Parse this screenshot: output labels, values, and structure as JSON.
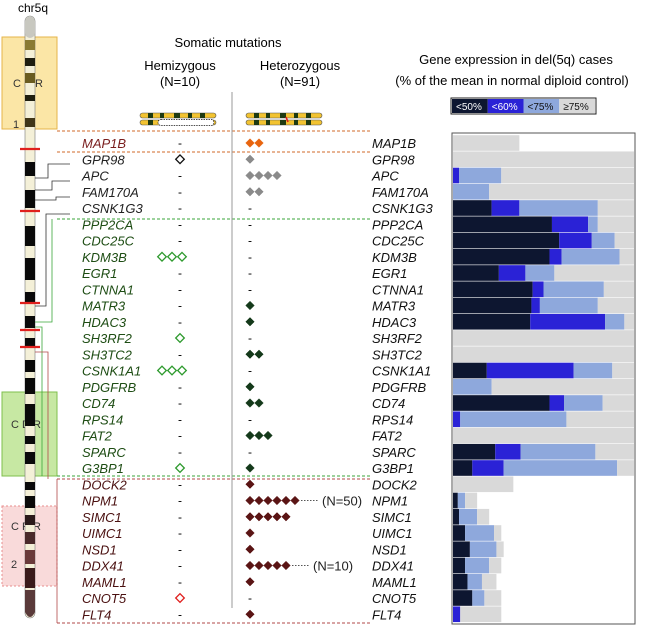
{
  "chromosome": {
    "label": "chr5q"
  },
  "regions": [
    {
      "id": "crr1",
      "lines": [
        "C R R",
        "1"
      ],
      "color": "#fbe6a6"
    },
    {
      "id": "cdr",
      "lines": [
        "C D R"
      ],
      "color": "#c7e8a3"
    },
    {
      "id": "crr2",
      "lines": [
        "C R R",
        "2"
      ],
      "color": "#f9dada"
    }
  ],
  "mutations": {
    "title": "Somatic mutations",
    "hemi_label": "Hemizygous",
    "hemi_n": "(N=10)",
    "hetero_label": "Heterozygous",
    "hetero_n": "(N=91)"
  },
  "expression": {
    "title_line1": "Gene expression in del(5q) cases",
    "title_line2": "(% of the mean in normal diploid control)",
    "legend": [
      {
        "label": "<50%",
        "color": "#0d1630"
      },
      {
        "label": "<60%",
        "color": "#2a22d6"
      },
      {
        "label": "<75%",
        "color": "#8ea8dc"
      },
      {
        "label": "≥75%",
        "color": "#d9d9d9"
      }
    ]
  },
  "colors": {
    "crr1_gene": "#7a1e1e",
    "gray_gene": "#222222",
    "cdr_gene": "#1e4d14",
    "crr2_gene": "#4a1010",
    "diamond_orange": "#e8640e",
    "diamond_gray": "#8a8a8a",
    "diamond_green_dark": "#14391a",
    "diamond_brown": "#5a1414",
    "hollow_green": "#2e9a2e",
    "hollow_red": "#e0201e",
    "hollow_black": "#111111"
  },
  "genes": [
    {
      "name": "MAP1B",
      "group": "crr1",
      "hemi": {
        "n": 0,
        "style": "dash"
      },
      "hetero": {
        "n": 2,
        "style": "orange"
      },
      "exp": [
        0,
        0,
        0,
        55
      ]
    },
    {
      "name": "GPR98",
      "group": "gray",
      "hemi": {
        "n": 1,
        "style": "black"
      },
      "hetero": {
        "n": 1,
        "style": "gray"
      },
      "exp": [
        0,
        0,
        0,
        150
      ]
    },
    {
      "name": "APC",
      "group": "gray",
      "hemi": {
        "n": 0,
        "style": "dash"
      },
      "hetero": {
        "n": 4,
        "style": "gray"
      },
      "exp": [
        0,
        5,
        40,
        150
      ]
    },
    {
      "name": "FAM170A",
      "group": "gray",
      "hemi": {
        "n": 0,
        "style": "dash"
      },
      "hetero": {
        "n": 2,
        "style": "gray"
      },
      "exp": [
        0,
        0,
        30,
        150
      ]
    },
    {
      "name": "CSNK1G3",
      "group": "gray",
      "hemi": {
        "n": 0,
        "style": "dash"
      },
      "hetero": {
        "n": 0,
        "style": "dash"
      },
      "exp": [
        32,
        55,
        120,
        150
      ]
    },
    {
      "name": "PPP2CA",
      "group": "cdr",
      "hemi": {
        "n": 0,
        "style": "dash"
      },
      "hetero": {
        "n": 0,
        "style": "dash"
      },
      "exp": [
        82,
        112,
        120,
        150
      ]
    },
    {
      "name": "CDC25C",
      "group": "cdr",
      "hemi": {
        "n": 0,
        "style": "dash"
      },
      "hetero": {
        "n": 0,
        "style": "dash"
      },
      "exp": [
        88,
        115,
        134,
        150
      ]
    },
    {
      "name": "KDM3B",
      "group": "cdr",
      "hemi": {
        "n": 3,
        "style": "green"
      },
      "hetero": {
        "n": 0,
        "style": "dash"
      },
      "exp": [
        80,
        90,
        138,
        150
      ]
    },
    {
      "name": "EGR1",
      "group": "cdr",
      "hemi": {
        "n": 0,
        "style": "dash"
      },
      "hetero": {
        "n": 0,
        "style": "dash"
      },
      "exp": [
        38,
        60,
        84,
        150
      ]
    },
    {
      "name": "CTNNA1",
      "group": "cdr",
      "hemi": {
        "n": 0,
        "style": "dash"
      },
      "hetero": {
        "n": 0,
        "style": "dash"
      },
      "exp": [
        66,
        75,
        125,
        150
      ]
    },
    {
      "name": "MATR3",
      "group": "cdr",
      "hemi": {
        "n": 0,
        "style": "dash"
      },
      "hetero": {
        "n": 1,
        "style": "green"
      },
      "exp": [
        65,
        72,
        120,
        150
      ]
    },
    {
      "name": "HDAC3",
      "group": "cdr",
      "hemi": {
        "n": 0,
        "style": "dash"
      },
      "hetero": {
        "n": 1,
        "style": "green"
      },
      "exp": [
        64,
        126,
        142,
        150
      ]
    },
    {
      "name": "SH3RF2",
      "group": "cdr",
      "hemi": {
        "n": 1,
        "style": "green"
      },
      "hetero": {
        "n": 0,
        "style": "dash"
      },
      "exp": [
        0,
        0,
        0,
        150
      ]
    },
    {
      "name": "SH3TC2",
      "group": "cdr",
      "hemi": {
        "n": 0,
        "style": "dash"
      },
      "hetero": {
        "n": 2,
        "style": "green"
      },
      "exp": [
        0,
        0,
        0,
        150
      ]
    },
    {
      "name": "CSNK1A1",
      "group": "cdr",
      "hemi": {
        "n": 3,
        "style": "green"
      },
      "hetero": {
        "n": 0,
        "style": "dash"
      },
      "exp": [
        28,
        100,
        132,
        150
      ]
    },
    {
      "name": "PDGFRB",
      "group": "cdr",
      "hemi": {
        "n": 0,
        "style": "dash"
      },
      "hetero": {
        "n": 1,
        "style": "green"
      },
      "exp": [
        0,
        0,
        32,
        150
      ]
    },
    {
      "name": "CD74",
      "group": "cdr",
      "hemi": {
        "n": 0,
        "style": "dash"
      },
      "hetero": {
        "n": 2,
        "style": "green"
      },
      "exp": [
        80,
        92,
        124,
        150
      ]
    },
    {
      "name": "RPS14",
      "group": "cdr",
      "hemi": {
        "n": 0,
        "style": "dash"
      },
      "hetero": {
        "n": 0,
        "style": "dash"
      },
      "exp": [
        0,
        6,
        94,
        150
      ]
    },
    {
      "name": "FAT2",
      "group": "cdr",
      "hemi": {
        "n": 0,
        "style": "dash"
      },
      "hetero": {
        "n": 3,
        "style": "green"
      },
      "exp": [
        0,
        0,
        0,
        150
      ]
    },
    {
      "name": "SPARC",
      "group": "cdr",
      "hemi": {
        "n": 0,
        "style": "dash"
      },
      "hetero": {
        "n": 0,
        "style": "dash"
      },
      "exp": [
        35,
        56,
        118,
        150
      ]
    },
    {
      "name": "G3BP1",
      "group": "cdr",
      "hemi": {
        "n": 1,
        "style": "green"
      },
      "hetero": {
        "n": 1,
        "style": "green"
      },
      "exp": [
        16,
        42,
        136,
        150
      ]
    },
    {
      "name": "DOCK2",
      "group": "crr2",
      "hemi": {
        "n": 0,
        "style": "dash"
      },
      "hetero": {
        "n": 1,
        "style": "brown"
      },
      "exp": [
        0,
        0,
        0,
        50
      ]
    },
    {
      "name": "NPM1",
      "group": "crr2",
      "hemi": {
        "n": 0,
        "style": "dash"
      },
      "hetero": {
        "n": 6,
        "style": "brown"
      },
      "note": "(N=50)",
      "exp": [
        4,
        4,
        10,
        20
      ]
    },
    {
      "name": "SIMC1",
      "group": "crr2",
      "hemi": {
        "n": 0,
        "style": "dash"
      },
      "hetero": {
        "n": 5,
        "style": "brown"
      },
      "exp": [
        5,
        5,
        20,
        30
      ]
    },
    {
      "name": "UIMC1",
      "group": "crr2",
      "hemi": {
        "n": 0,
        "style": "dash"
      },
      "hetero": {
        "n": 1,
        "style": "brown"
      },
      "exp": [
        10,
        10,
        34,
        40
      ]
    },
    {
      "name": "NSD1",
      "group": "crr2",
      "hemi": {
        "n": 0,
        "style": "dash"
      },
      "hetero": {
        "n": 1,
        "style": "brown"
      },
      "exp": [
        14,
        14,
        36,
        42
      ]
    },
    {
      "name": "DDX41",
      "group": "crr2",
      "hemi": {
        "n": 0,
        "style": "dash"
      },
      "hetero": {
        "n": 5,
        "style": "brown"
      },
      "note": "(N=10)",
      "exp": [
        10,
        10,
        30,
        40
      ]
    },
    {
      "name": "MAML1",
      "group": "crr2",
      "hemi": {
        "n": 0,
        "style": "dash"
      },
      "hetero": {
        "n": 1,
        "style": "brown"
      },
      "exp": [
        12,
        12,
        24,
        36
      ]
    },
    {
      "name": "CNOT5",
      "group": "crr2",
      "hemi": {
        "n": 1,
        "style": "red"
      },
      "hetero": {
        "n": 0,
        "style": "dash"
      },
      "exp": [
        16,
        16,
        26,
        40
      ]
    },
    {
      "name": "FLT4",
      "group": "crr2",
      "hemi": {
        "n": 0,
        "style": "dash"
      },
      "hetero": {
        "n": 1,
        "style": "brown"
      },
      "exp": [
        0,
        6,
        6,
        40
      ]
    }
  ]
}
